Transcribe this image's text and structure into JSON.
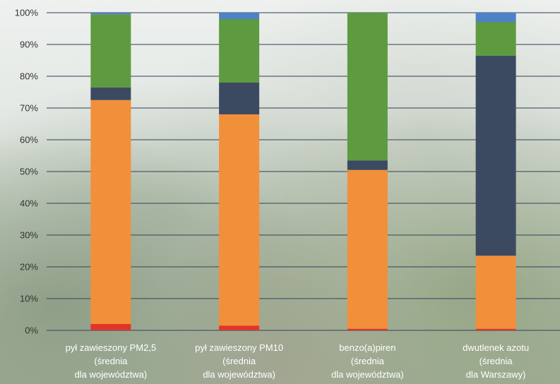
{
  "chart_data": {
    "type": "bar",
    "stacked": true,
    "percent": true,
    "categories": [
      [
        "pył zawieszony PM2,5",
        "(średnia",
        "dla województwa)"
      ],
      [
        "pył zawieszony PM10",
        "(średnia",
        "dla województwa)"
      ],
      [
        "benzo(a)piren",
        "(średnia",
        "dla województwa)"
      ],
      [
        "dwutlenek azotu",
        "(średnia",
        "dla Warszawy)"
      ]
    ],
    "series": [
      {
        "color": "#e0352b",
        "values": [
          2,
          1.5,
          0.5,
          0.5
        ]
      },
      {
        "color": "#f28f3b",
        "values": [
          70.5,
          66.5,
          50,
          23
        ]
      },
      {
        "color": "#3b4a60",
        "values": [
          4,
          10,
          3,
          63
        ]
      },
      {
        "color": "#5e9a3f",
        "values": [
          23,
          20,
          46.5,
          10.5
        ]
      },
      {
        "color": "#4f81c7",
        "values": [
          0.5,
          2,
          0,
          3
        ]
      }
    ],
    "yticks": [
      "0%",
      "10%",
      "20%",
      "30%",
      "40%",
      "50%",
      "60%",
      "70%",
      "80%",
      "90%",
      "100%"
    ],
    "ylim": [
      0,
      100
    ],
    "grid": true
  }
}
